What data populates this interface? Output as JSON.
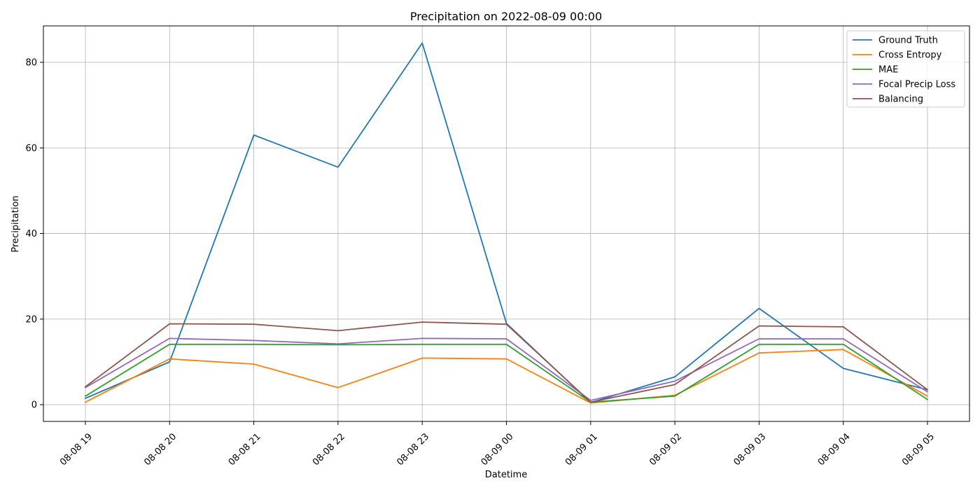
{
  "chart_data": {
    "type": "line",
    "title": "Precipitation on 2022-08-09 00:00",
    "xlabel": "Datetime",
    "ylabel": "Precipitation",
    "x": [
      "08-08 19",
      "08-08 20",
      "08-08 21",
      "08-08 22",
      "08-08 23",
      "08-09 00",
      "08-09 01",
      "08-09 02",
      "08-09 03",
      "08-09 04",
      "08-09 05"
    ],
    "ylim": [
      -3.9,
      88.5
    ],
    "yticks": [
      0,
      20,
      40,
      60,
      80
    ],
    "grid": true,
    "legend_position": "top-right",
    "series": [
      {
        "name": "Ground Truth",
        "color": "#1f77b4",
        "values": [
          1.5,
          10.0,
          63.0,
          55.5,
          84.5,
          19.0,
          0.5,
          6.5,
          22.5,
          8.5,
          3.5
        ]
      },
      {
        "name": "Cross Entropy",
        "color": "#ff7f0e",
        "values": [
          0.6,
          10.7,
          9.5,
          4.0,
          10.9,
          10.7,
          0.4,
          2.2,
          12.1,
          12.9,
          2.0
        ]
      },
      {
        "name": "MAE",
        "color": "#2ca02c",
        "values": [
          2.0,
          14.1,
          14.1,
          14.0,
          14.1,
          14.1,
          0.6,
          2.0,
          14.1,
          14.1,
          1.2
        ]
      },
      {
        "name": "Focal Precip Loss",
        "color": "#9467bd",
        "values": [
          4.0,
          15.5,
          15.0,
          14.2,
          15.5,
          15.4,
          1.0,
          5.5,
          15.4,
          15.4,
          3.0
        ]
      },
      {
        "name": "Balancing",
        "color": "#8c564b",
        "values": [
          4.2,
          18.9,
          18.8,
          17.3,
          19.3,
          18.8,
          0.6,
          4.7,
          18.4,
          18.2,
          3.5
        ]
      }
    ]
  }
}
